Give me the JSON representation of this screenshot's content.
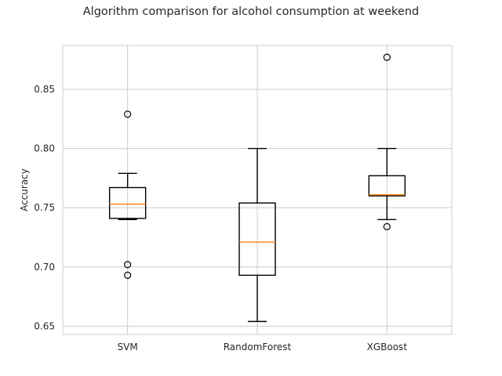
{
  "chart_data": {
    "type": "boxplot",
    "title": "Algorithm comparison for alcohol consumption at weekend",
    "xlabel": "",
    "ylabel": "Accuracy",
    "ylim": [
      0.643,
      0.887
    ],
    "yticks": [
      0.65,
      0.7,
      0.75,
      0.8,
      0.85
    ],
    "ytick_labels": [
      "0.65",
      "0.70",
      "0.75",
      "0.80",
      "0.85"
    ],
    "grid": true,
    "categories": [
      "SVM",
      "RandomForest",
      "XGBoost"
    ],
    "boxes": [
      {
        "name": "SVM",
        "whisker_low": 0.74,
        "q1": 0.741,
        "median": 0.753,
        "q3": 0.767,
        "whisker_high": 0.779,
        "outliers": [
          0.829,
          0.702,
          0.693
        ]
      },
      {
        "name": "RandomForest",
        "whisker_low": 0.654,
        "q1": 0.693,
        "median": 0.721,
        "q3": 0.754,
        "whisker_high": 0.8,
        "outliers": []
      },
      {
        "name": "XGBoost",
        "whisker_low": 0.74,
        "q1": 0.76,
        "median": 0.761,
        "q3": 0.777,
        "whisker_high": 0.8,
        "outliers": [
          0.877,
          0.734
        ]
      }
    ],
    "colors": {
      "box": "#000000",
      "median": "#ff7f0e",
      "grid": "#cccccc",
      "spine": "#cccccc"
    }
  }
}
